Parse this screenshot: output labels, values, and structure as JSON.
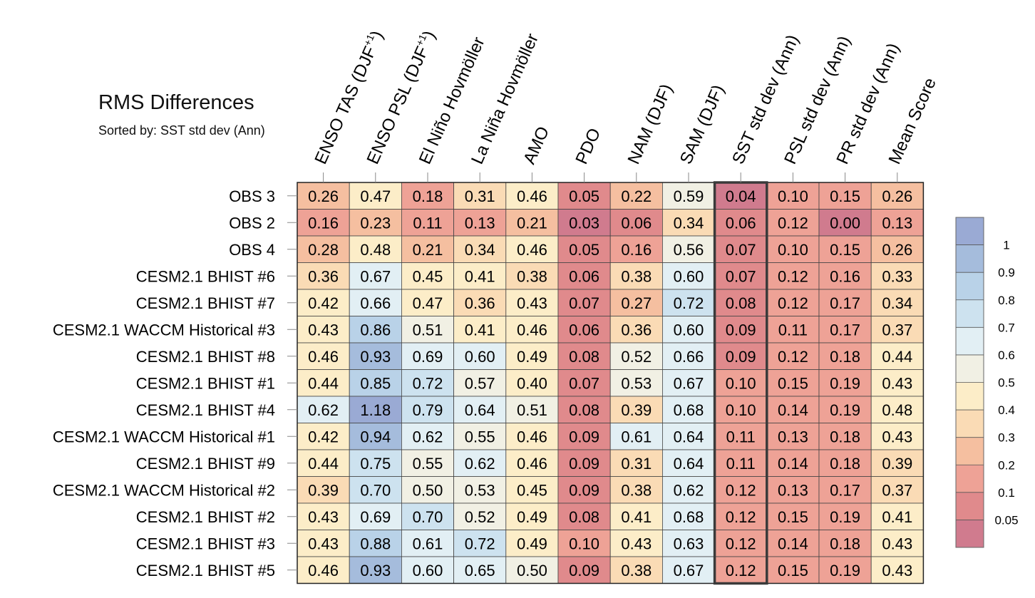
{
  "chart_data": {
    "type": "heatmap",
    "title": "RMS Differences",
    "subtitle": "Sorted by: SST std dev (Ann)",
    "columns": [
      {
        "main": "ENSO TAS (DJF",
        "sup": "+1",
        "tail": ")"
      },
      {
        "main": "ENSO PSL (DJF",
        "sup": "+1",
        "tail": ")"
      },
      {
        "main": "El Niño Hovmöller",
        "sup": "",
        "tail": ""
      },
      {
        "main": "La Niña Hovmöller",
        "sup": "",
        "tail": ""
      },
      {
        "main": "AMO",
        "sup": "",
        "tail": ""
      },
      {
        "main": "PDO",
        "sup": "",
        "tail": ""
      },
      {
        "main": "NAM (DJF)",
        "sup": "",
        "tail": ""
      },
      {
        "main": "SAM (DJF)",
        "sup": "",
        "tail": ""
      },
      {
        "main": "SST std dev (Ann)",
        "sup": "",
        "tail": ""
      },
      {
        "main": "PSL std dev (Ann)",
        "sup": "",
        "tail": ""
      },
      {
        "main": "PR std dev (Ann)",
        "sup": "",
        "tail": ""
      },
      {
        "main": "Mean Score",
        "sup": "",
        "tail": ""
      }
    ],
    "sorted_column_index": 8,
    "rows": [
      "OBS 3",
      "OBS 2",
      "OBS 4",
      "CESM2.1 BHIST #6",
      "CESM2.1 BHIST #7",
      "CESM2.1 WACCM Historical #3",
      "CESM2.1 BHIST #8",
      "CESM2.1 BHIST #1",
      "CESM2.1 BHIST #4",
      "CESM2.1 WACCM Historical #1",
      "CESM2.1 BHIST #9",
      "CESM2.1 WACCM Historical #2",
      "CESM2.1 BHIST #2",
      "CESM2.1 BHIST #3",
      "CESM2.1 BHIST #5"
    ],
    "values": [
      [
        "0.26",
        "0.47",
        "0.18",
        "0.31",
        "0.46",
        "0.05",
        "0.22",
        "0.59",
        "0.04",
        "0.10",
        "0.15",
        "0.26"
      ],
      [
        "0.16",
        "0.23",
        "0.11",
        "0.13",
        "0.21",
        "0.03",
        "0.06",
        "0.34",
        "0.06",
        "0.12",
        "0.00",
        "0.13"
      ],
      [
        "0.28",
        "0.48",
        "0.21",
        "0.34",
        "0.46",
        "0.05",
        "0.16",
        "0.56",
        "0.07",
        "0.10",
        "0.15",
        "0.26"
      ],
      [
        "0.36",
        "0.67",
        "0.45",
        "0.41",
        "0.38",
        "0.06",
        "0.38",
        "0.60",
        "0.07",
        "0.12",
        "0.16",
        "0.33"
      ],
      [
        "0.42",
        "0.66",
        "0.47",
        "0.36",
        "0.43",
        "0.07",
        "0.27",
        "0.72",
        "0.08",
        "0.12",
        "0.17",
        "0.34"
      ],
      [
        "0.43",
        "0.86",
        "0.51",
        "0.41",
        "0.46",
        "0.06",
        "0.36",
        "0.60",
        "0.09",
        "0.11",
        "0.17",
        "0.37"
      ],
      [
        "0.46",
        "0.93",
        "0.69",
        "0.60",
        "0.49",
        "0.08",
        "0.52",
        "0.66",
        "0.09",
        "0.12",
        "0.18",
        "0.44"
      ],
      [
        "0.44",
        "0.85",
        "0.72",
        "0.57",
        "0.40",
        "0.07",
        "0.53",
        "0.67",
        "0.10",
        "0.15",
        "0.19",
        "0.43"
      ],
      [
        "0.62",
        "1.18",
        "0.79",
        "0.64",
        "0.51",
        "0.08",
        "0.39",
        "0.68",
        "0.10",
        "0.14",
        "0.19",
        "0.48"
      ],
      [
        "0.42",
        "0.94",
        "0.62",
        "0.55",
        "0.46",
        "0.09",
        "0.61",
        "0.64",
        "0.11",
        "0.13",
        "0.18",
        "0.43"
      ],
      [
        "0.44",
        "0.75",
        "0.55",
        "0.62",
        "0.46",
        "0.09",
        "0.31",
        "0.64",
        "0.11",
        "0.14",
        "0.18",
        "0.39"
      ],
      [
        "0.39",
        "0.70",
        "0.50",
        "0.53",
        "0.45",
        "0.09",
        "0.38",
        "0.62",
        "0.12",
        "0.13",
        "0.17",
        "0.37"
      ],
      [
        "0.43",
        "0.69",
        "0.70",
        "0.52",
        "0.49",
        "0.08",
        "0.41",
        "0.68",
        "0.12",
        "0.15",
        "0.19",
        "0.41"
      ],
      [
        "0.43",
        "0.88",
        "0.61",
        "0.72",
        "0.49",
        "0.10",
        "0.43",
        "0.63",
        "0.12",
        "0.14",
        "0.18",
        "0.43"
      ],
      [
        "0.46",
        "0.93",
        "0.60",
        "0.65",
        "0.50",
        "0.09",
        "0.38",
        "0.67",
        "0.12",
        "0.15",
        "0.19",
        "0.43"
      ]
    ],
    "colorbar": {
      "thresholds": [
        0.05,
        0.1,
        0.2,
        0.3,
        0.4,
        0.5,
        0.6,
        0.7,
        0.8,
        0.9,
        1
      ],
      "tick_labels": [
        "0.05",
        "0.1",
        "0.2",
        "0.3",
        "0.4",
        "0.5",
        "0.6",
        "0.7",
        "0.8",
        "0.9",
        "1"
      ],
      "colors": [
        "#d07b8e",
        "#e08a8c",
        "#eea296",
        "#f5bfa0",
        "#fadbb5",
        "#fcedc8",
        "#f1f0e4",
        "#e2eff4",
        "#cde2ef",
        "#b9d2e8",
        "#a5bcdc",
        "#9aaad4"
      ]
    }
  }
}
